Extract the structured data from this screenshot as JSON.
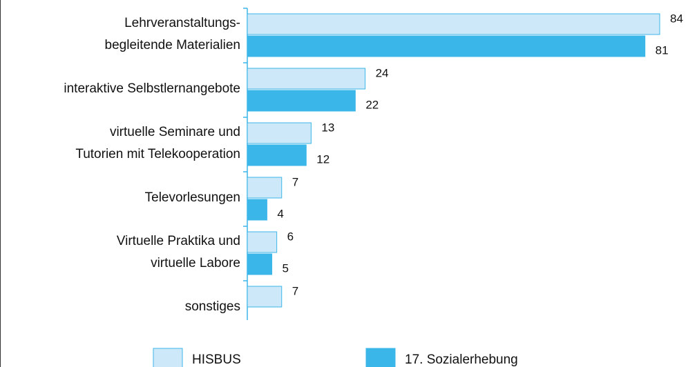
{
  "chart_data": {
    "type": "bar",
    "orientation": "horizontal",
    "categories": [
      [
        "Lehrveranstaltungs-",
        "begleitende Materialien"
      ],
      [
        "interaktive Selbstlernangebote"
      ],
      [
        "virtuelle Seminare und",
        "Tutorien mit Telekooperation"
      ],
      [
        "Televorlesungen"
      ],
      [
        "Virtuelle Praktika und",
        "virtuelle Labore"
      ],
      [
        "sonstiges"
      ]
    ],
    "series": [
      {
        "name": "HISBUS",
        "color": "#cde8f8",
        "values": [
          84,
          24,
          13,
          7,
          6,
          7
        ]
      },
      {
        "name": "17. Sozialerhebung",
        "color": "#3bb6e8",
        "values": [
          81,
          22,
          12,
          4,
          5,
          null
        ]
      }
    ]
  }
}
